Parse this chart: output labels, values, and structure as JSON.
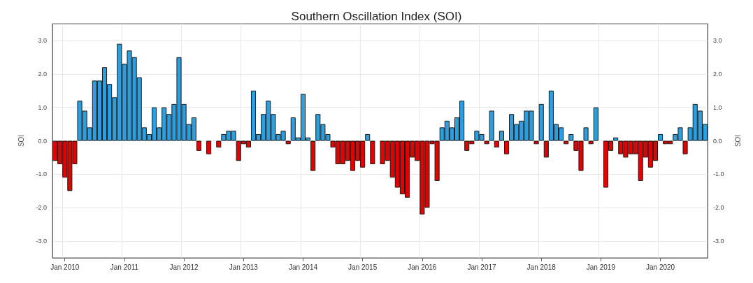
{
  "chart_data": {
    "type": "bar",
    "title": "Southern Oscillation Index (SOI)",
    "ylabel": "SOI",
    "y2label": "SOI",
    "categories": [
      null,
      null,
      "Jan 2010",
      null,
      null,
      null,
      null,
      null,
      null,
      null,
      null,
      null,
      null,
      null,
      "Jan 2011",
      null,
      null,
      null,
      null,
      null,
      null,
      null,
      null,
      null,
      null,
      null,
      "Jan 2012",
      null,
      null,
      null,
      null,
      null,
      null,
      null,
      null,
      null,
      null,
      null,
      "Jan 2013",
      null,
      null,
      null,
      null,
      null,
      null,
      null,
      null,
      null,
      null,
      null,
      "Jan 2014",
      null,
      null,
      null,
      null,
      null,
      null,
      null,
      null,
      null,
      null,
      null,
      "Jan 2015",
      null,
      null,
      null,
      null,
      null,
      null,
      null,
      null,
      null,
      null,
      null,
      "Jan 2016",
      null,
      null,
      null,
      null,
      null,
      null,
      null,
      null,
      null,
      null,
      null,
      "Jan 2017",
      null,
      null,
      null,
      null,
      null,
      null,
      null,
      null,
      null,
      null,
      null,
      "Jan 2018",
      null,
      null,
      null,
      null,
      null,
      null,
      null,
      null,
      null,
      null,
      null,
      "Jan 2019",
      null,
      null,
      null,
      null,
      null,
      null,
      null,
      null,
      null,
      null,
      null,
      "Jan 2020",
      null,
      null,
      null,
      null,
      null,
      null,
      null,
      null,
      null
    ],
    "values": [
      -0.6,
      -0.7,
      -1.1,
      -1.5,
      -0.7,
      1.2,
      0.9,
      0.4,
      1.8,
      1.8,
      2.2,
      1.7,
      1.3,
      2.9,
      2.3,
      2.7,
      2.5,
      1.9,
      0.4,
      0.2,
      1.0,
      0.4,
      1.0,
      0.8,
      1.1,
      2.5,
      1.1,
      0.5,
      0.7,
      -0.3,
      null,
      -0.4,
      null,
      -0.2,
      0.2,
      0.3,
      0.3,
      -0.6,
      -0.1,
      -0.2,
      1.5,
      0.2,
      0.8,
      1.2,
      0.8,
      0.2,
      0.3,
      -0.1,
      0.7,
      0.1,
      1.4,
      0.1,
      -0.9,
      0.8,
      0.5,
      0.2,
      -0.2,
      -0.7,
      -0.7,
      -0.6,
      -0.9,
      -0.6,
      -0.8,
      0.2,
      -0.7,
      null,
      -0.7,
      -0.6,
      -1.1,
      -1.4,
      -1.6,
      -1.7,
      -0.5,
      -0.6,
      -2.2,
      -2.0,
      -0.1,
      -1.2,
      0.4,
      0.6,
      0.4,
      0.7,
      1.2,
      -0.3,
      -0.1,
      0.3,
      0.2,
      -0.1,
      0.9,
      -0.2,
      0.3,
      -0.4,
      0.8,
      0.5,
      0.6,
      0.9,
      0.9,
      -0.1,
      1.1,
      -0.5,
      1.5,
      0.5,
      0.4,
      -0.1,
      0.2,
      -0.3,
      -0.9,
      0.4,
      -0.1,
      1.0,
      null,
      -1.4,
      -0.3,
      0.1,
      -0.4,
      -0.5,
      -0.4,
      -0.4,
      -1.2,
      -0.5,
      -0.8,
      -0.6,
      0.2,
      -0.1,
      -0.1,
      0.2,
      0.4,
      -0.4,
      0.4,
      1.1,
      0.9,
      0.5
    ],
    "colors": [
      "#e30000",
      "#e30000",
      "#e30000",
      "#e30000",
      "#e30000",
      "#2b9fe0",
      "#2b9fe0",
      "#2b9fe0",
      "#2b9fe0",
      "#2b9fe0",
      "#2b9fe0",
      "#2b9fe0",
      "#2b9fe0",
      "#2b9fe0",
      "#2b9fe0",
      "#2b9fe0",
      "#2b9fe0",
      "#2b9fe0",
      "#2b9fe0",
      "#2b9fe0",
      "#2b9fe0",
      "#2b9fe0",
      "#2b9fe0",
      "#2b9fe0",
      "#2b9fe0",
      "#2b9fe0",
      "#2b9fe0",
      "#2b9fe0",
      "#2b9fe0",
      "#e30000",
      null,
      "#e30000",
      null,
      "#e30000",
      "#2b9fe0",
      "#2b9fe0",
      "#2b9fe0",
      "#e30000",
      "#e30000",
      "#e30000",
      "#2b9fe0",
      "#2b9fe0",
      "#2b9fe0",
      "#2b9fe0",
      "#2b9fe0",
      "#2b9fe0",
      "#2b9fe0",
      "#e30000",
      "#2b9fe0",
      "#2b9fe0",
      "#2b9fe0",
      "#2b9fe0",
      "#e30000",
      "#2b9fe0",
      "#2b9fe0",
      "#2b9fe0",
      "#e30000",
      "#e30000",
      "#e30000",
      "#e30000",
      "#e30000",
      "#e30000",
      "#e30000",
      "#2b9fe0",
      "#e30000",
      null,
      "#e30000",
      "#e30000",
      "#e30000",
      "#e30000",
      "#e30000",
      "#e30000",
      "#e30000",
      "#e30000",
      "#e30000",
      "#e30000",
      "#e30000",
      "#e30000",
      "#2b9fe0",
      "#2b9fe0",
      "#2b9fe0",
      "#2b9fe0",
      "#2b9fe0",
      "#e30000",
      "#e30000",
      "#2b9fe0",
      "#2b9fe0",
      "#e30000",
      "#2b9fe0",
      "#e30000",
      "#2b9fe0",
      "#e30000",
      "#2b9fe0",
      "#2b9fe0",
      "#2b9fe0",
      "#2b9fe0",
      "#2b9fe0",
      "#e30000",
      "#2b9fe0",
      "#e30000",
      "#2b9fe0",
      "#2b9fe0",
      "#2b9fe0",
      "#e30000",
      "#2b9fe0",
      "#e30000",
      "#e30000",
      "#2b9fe0",
      "#e30000",
      "#2b9fe0",
      null,
      "#e30000",
      "#e30000",
      "#2b9fe0",
      "#e30000",
      "#e30000",
      "#e30000",
      "#e30000",
      "#e30000",
      "#e30000",
      "#e30000",
      "#e30000",
      "#2b9fe0",
      "#e30000",
      "#e30000",
      "#2b9fe0",
      "#2b9fe0",
      "#e30000",
      "#2b9fe0",
      "#2b9fe0",
      "#2b9fe0",
      "#2b9fe0"
    ],
    "ylim": [
      -3.5,
      3.5
    ],
    "yticks": [
      {
        "value": -3,
        "label": "-3.0"
      },
      {
        "value": -2,
        "label": "-2.0"
      },
      {
        "value": -1,
        "label": "-1.0"
      },
      {
        "value": 0,
        "label": "0.0"
      },
      {
        "value": 1,
        "label": "1.0"
      },
      {
        "value": 2,
        "label": "2.0"
      },
      {
        "value": 3,
        "label": "3.0"
      }
    ],
    "y2lim": [
      -3.5,
      3.5
    ],
    "y2ticks": [
      {
        "value": -3,
        "label": "-3.0"
      },
      {
        "value": -2,
        "label": "-2.0"
      },
      {
        "value": -1,
        "label": "-1.0"
      },
      {
        "value": 0,
        "label": "0.0"
      },
      {
        "value": 1,
        "label": "1.0"
      },
      {
        "value": 2,
        "label": "2.0"
      },
      {
        "value": 3,
        "label": "3.0"
      }
    ],
    "grid": true
  }
}
